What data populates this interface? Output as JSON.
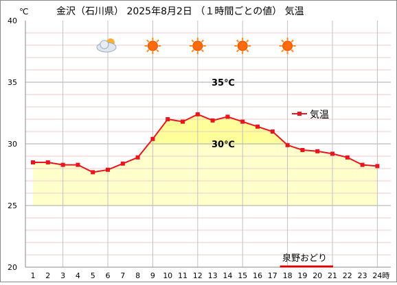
{
  "chart_data": {
    "type": "line",
    "title": "金沢（石川県） 2025年8月2日 （１時間ごとの値） 気温",
    "ylabel": "℃",
    "xunit": "時",
    "ylim": [
      20,
      40
    ],
    "yticks": [
      20,
      25,
      30,
      35,
      40
    ],
    "x": [
      1,
      2,
      3,
      4,
      5,
      6,
      7,
      8,
      9,
      10,
      11,
      12,
      13,
      14,
      15,
      16,
      17,
      18,
      19,
      20,
      21,
      22,
      23,
      24
    ],
    "xtick_labels": [
      "1",
      "2",
      "3",
      "4",
      "5",
      "6",
      "7",
      "8",
      "9",
      "10",
      "11",
      "12",
      "13",
      "14",
      "15",
      "16",
      "17",
      "18",
      "19",
      "20",
      "21",
      "22",
      "23",
      "24"
    ],
    "series": [
      {
        "name": "気温",
        "color": "#e8141e",
        "values": [
          28.5,
          28.5,
          28.3,
          28.3,
          27.7,
          27.9,
          28.4,
          28.9,
          30.4,
          32.0,
          31.8,
          32.4,
          31.9,
          32.2,
          31.8,
          31.4,
          31.0,
          29.9,
          29.5,
          29.4,
          29.2,
          28.9,
          28.3,
          28.2
        ]
      }
    ],
    "threshold_bands": [
      {
        "value": 30,
        "label": "30℃",
        "color": "#ffff99"
      },
      {
        "value": 35,
        "label": "35℃",
        "color": "#ffd280"
      }
    ],
    "band_floor": 25,
    "weather_icons": [
      {
        "hour": 6,
        "icon": "cloud-sun-icon"
      },
      {
        "hour": 9,
        "icon": "sun-icon"
      },
      {
        "hour": 12,
        "icon": "sun-icon"
      },
      {
        "hour": 15,
        "icon": "sun-icon"
      },
      {
        "hour": 18,
        "icon": "sun-icon"
      }
    ],
    "event": {
      "label": "泉野おどり",
      "start_hour": 18,
      "end_hour": 21,
      "color": "#dd0000"
    },
    "legend": {
      "label": "気温",
      "position": "right"
    },
    "grid": true
  }
}
